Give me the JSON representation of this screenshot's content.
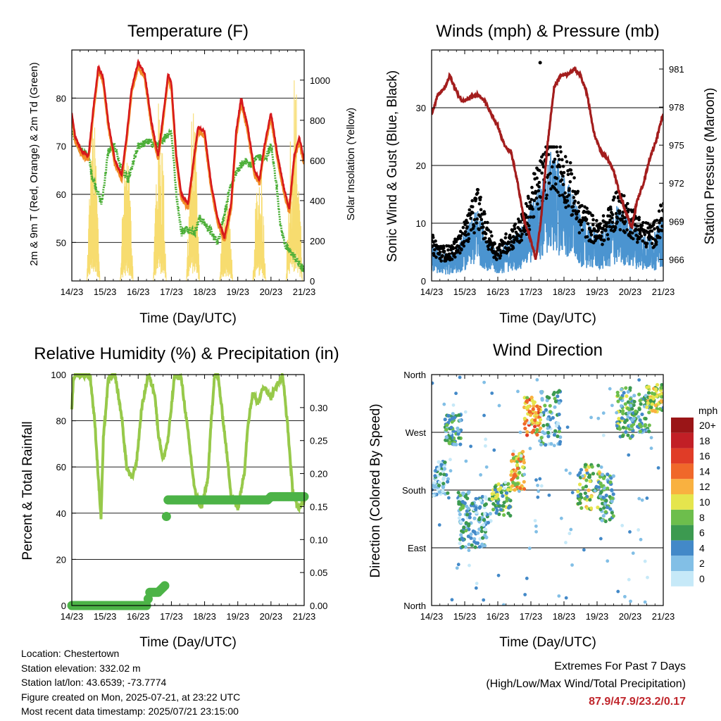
{
  "colors": {
    "temp_2m": "#d7191c",
    "temp_9m": "#f28c28",
    "dewpoint": "#4caf38",
    "solar": "#f7dc6f",
    "wind": "#4b94d0",
    "gust": "#000000",
    "pressure": "#a31d1d",
    "rh": "#97c94a",
    "rain": "#4cb347",
    "extremes": "#c0262c"
  },
  "x_ticks": [
    "14/23",
    "15/23",
    "16/23",
    "17/23",
    "18/23",
    "19/23",
    "20/23",
    "21/23"
  ],
  "panels": {
    "temperature": {
      "title": "Temperature (F)",
      "ylabel_left": "2m & 9m T (Red, Orange) & 2m Td (Green)",
      "ylabel_right": "Solar Insolation (Yellow)",
      "xlabel": "Time (Day/UTC)"
    },
    "winds": {
      "title": "Winds (mph) & Pressure (mb)",
      "ylabel_left": "Sonic Wind & Gust (Blue, Black)",
      "ylabel_right": "Station Pressure (Maroon)",
      "xlabel": "Time (Day/UTC)"
    },
    "humidity": {
      "title": "Relative Humidity (%) & Precipitation (in)",
      "ylabel_left": "Percent & Total Rainfall",
      "xlabel": "Time (Day/UTC)"
    },
    "direction": {
      "title": "Wind Direction",
      "ylabel_left": "Direction (Colored By Speed)",
      "xlabel": "Time (Day/UTC)",
      "legend_unit": "mph"
    }
  },
  "chart_data": [
    {
      "type": "line",
      "name": "temperature",
      "x_range": [
        0,
        7
      ],
      "ylim": [
        42,
        90
      ],
      "y2lim": [
        0,
        1150
      ],
      "yticks": [
        50,
        60,
        70,
        80
      ],
      "y2ticks": [
        0,
        200,
        400,
        600,
        800,
        1000
      ],
      "grid": true,
      "series": [
        {
          "key": "temp_2m",
          "x": [
            0,
            0.1,
            0.3,
            0.5,
            0.65,
            0.8,
            0.95,
            1.1,
            1.3,
            1.5,
            1.65,
            1.8,
            2.0,
            2.2,
            2.4,
            2.6,
            2.8,
            2.9,
            3.0,
            3.15,
            3.3,
            3.5,
            3.65,
            3.8,
            4.0,
            4.2,
            4.4,
            4.6,
            4.8,
            4.95,
            5.1,
            5.3,
            5.5,
            5.65,
            5.8,
            6.0,
            6.2,
            6.4,
            6.55,
            6.7,
            6.85,
            7.0
          ],
          "y": [
            77,
            72,
            69,
            68,
            78,
            86.5,
            84,
            75,
            67,
            64,
            72,
            82,
            87.5,
            85,
            75,
            68,
            79,
            85,
            83,
            68,
            60,
            58,
            66,
            74,
            73,
            62,
            55,
            51,
            58,
            73,
            80,
            74,
            65,
            63,
            70,
            77,
            68,
            61,
            57,
            68,
            72,
            67
          ]
        },
        {
          "key": "dewpoint",
          "x": [
            0,
            0.1,
            0.3,
            0.5,
            0.6,
            0.75,
            0.9,
            1.1,
            1.3,
            1.5,
            1.7,
            2.0,
            2.3,
            2.6,
            2.8,
            3.0,
            3.15,
            3.3,
            3.5,
            3.7,
            3.85,
            4.0,
            4.2,
            4.4,
            4.6,
            4.8,
            5.0,
            5.2,
            5.4,
            5.6,
            5.8,
            6.0,
            6.15,
            6.3,
            6.45,
            6.6,
            6.8,
            7.0
          ],
          "y": [
            73,
            71,
            69,
            68,
            64,
            61,
            58,
            69,
            70,
            65,
            63,
            70,
            71,
            70,
            72,
            73,
            60,
            52,
            53,
            52,
            55,
            54,
            52,
            50,
            56,
            62,
            65,
            67,
            66,
            68,
            67,
            70,
            63,
            53,
            49,
            48,
            46,
            44
          ]
        },
        {
          "key": "solar",
          "daylight": [
            [
              0.45,
              0.85
            ],
            [
              1.45,
              1.85
            ],
            [
              2.45,
              2.85
            ],
            [
              3.45,
              3.85
            ],
            [
              4.45,
              4.85
            ],
            [
              5.45,
              5.85
            ],
            [
              6.45,
              6.95
            ]
          ],
          "peaks": [
            820,
            700,
            950,
            880,
            520,
            620,
            1080
          ]
        }
      ]
    },
    {
      "type": "scatter",
      "name": "winds",
      "x_range": [
        0,
        7
      ],
      "ylim": [
        0,
        40
      ],
      "y2lim": [
        964.3,
        982.5
      ],
      "yticks": [
        0,
        10,
        20,
        30
      ],
      "y2ticks": [
        966,
        969,
        972,
        975,
        978,
        981
      ],
      "grid": true,
      "series": [
        {
          "key": "pressure",
          "x": [
            0,
            0.2,
            0.4,
            0.55,
            0.7,
            0.9,
            1.0,
            1.2,
            1.4,
            1.6,
            1.8,
            2.0,
            2.2,
            2.4,
            2.6,
            2.8,
            3.0,
            3.15,
            3.3,
            3.5,
            3.7,
            3.9,
            4.1,
            4.3,
            4.5,
            4.7,
            4.9,
            5.1,
            5.3,
            5.5,
            5.7,
            5.9,
            6.05,
            6.2,
            6.4,
            6.6,
            6.8,
            7.0
          ],
          "y": [
            977.5,
            979,
            979.5,
            980.5,
            979.5,
            978.5,
            978.5,
            978.8,
            979,
            978.5,
            977.5,
            976.5,
            975,
            974.5,
            972,
            969,
            967.5,
            966,
            969,
            975,
            979.5,
            980.5,
            980.5,
            981,
            980.5,
            979,
            976,
            974.5,
            974,
            973,
            971,
            969.5,
            968.5,
            970.5,
            972,
            974,
            975.5,
            977.5
          ]
        },
        {
          "key": "wind",
          "mean_speed": [
            4,
            3,
            3,
            4,
            6,
            8,
            5,
            3,
            4,
            5,
            6,
            9,
            11,
            14,
            12,
            10,
            7,
            6,
            5,
            6,
            8,
            7,
            6,
            5,
            5,
            7
          ]
        },
        {
          "key": "gust",
          "max": 23.2,
          "outlier": [
            3.28,
            37.8
          ]
        }
      ]
    },
    {
      "type": "line",
      "name": "humidity",
      "x_range": [
        0,
        7
      ],
      "ylim": [
        0,
        100
      ],
      "y2lim": [
        0,
        0.35
      ],
      "yticks": [
        0,
        20,
        40,
        60,
        80,
        100
      ],
      "y2ticks": [
        0.0,
        0.05,
        0.1,
        0.15,
        0.2,
        0.25,
        0.3
      ],
      "grid": true,
      "series": [
        {
          "key": "rh",
          "x": [
            0,
            0.05,
            0.15,
            0.35,
            0.55,
            0.7,
            0.8,
            0.88,
            0.95,
            1.1,
            1.3,
            1.5,
            1.65,
            1.8,
            1.95,
            2.1,
            2.3,
            2.5,
            2.6,
            2.75,
            2.9,
            3.1,
            3.3,
            3.5,
            3.7,
            3.9,
            4.1,
            4.2,
            4.3,
            4.4,
            4.6,
            4.8,
            5.0,
            5.2,
            5.3,
            5.45,
            5.6,
            5.8,
            6.0,
            6.2,
            6.35,
            6.5,
            6.65,
            6.8,
            7.0
          ],
          "y": [
            85,
            99,
            100,
            100,
            100,
            78,
            55,
            38,
            72,
            98,
            100,
            82,
            60,
            55,
            62,
            85,
            100,
            92,
            75,
            63,
            72,
            100,
            98,
            75,
            50,
            42,
            55,
            80,
            100,
            100,
            75,
            48,
            42,
            58,
            78,
            92,
            88,
            95,
            90,
            96,
            100,
            78,
            50,
            42,
            45
          ]
        },
        {
          "key": "rain",
          "x": [
            0,
            0.5,
            1.0,
            1.5,
            2.0,
            2.28,
            2.32,
            2.6,
            2.8,
            2.82,
            2.85,
            2.87,
            2.9,
            3.5,
            4.0,
            4.5,
            5.0,
            5.5,
            5.9,
            6.0,
            6.5,
            7.0
          ],
          "y": [
            0,
            0,
            0,
            0,
            0,
            0,
            0.02,
            0.02,
            0.03,
            0.095,
            0.135,
            0.16,
            0.16,
            0.16,
            0.16,
            0.16,
            0.16,
            0.16,
            0.16,
            0.165,
            0.165,
            0.165
          ]
        }
      ]
    },
    {
      "type": "scatter",
      "name": "direction",
      "x_range": [
        0,
        7
      ],
      "yticks": [
        "North",
        "East",
        "South",
        "West",
        "North"
      ],
      "ylim": [
        0,
        360
      ],
      "grid": true,
      "legend": {
        "labels": [
          "0",
          "2",
          "4",
          "6",
          "8",
          "10",
          "12",
          "14",
          "16",
          "18",
          "20+"
        ],
        "colors": [
          "#c6e9f8",
          "#82bfe6",
          "#4389c8",
          "#3c9a50",
          "#6dbe4c",
          "#e5e54d",
          "#f9b140",
          "#f0682a",
          "#e03c27",
          "#c21f26",
          "#9a1517"
        ]
      },
      "segments": [
        {
          "x": [
            0.0,
            0.5
          ],
          "dir": [
            170,
            225
          ],
          "speed": 3
        },
        {
          "x": [
            0.4,
            0.9
          ],
          "dir": [
            250,
            300
          ],
          "speed": 5
        },
        {
          "x": [
            0.8,
            1.2
          ],
          "dir": [
            90,
            180
          ],
          "speed": 4
        },
        {
          "x": [
            1.2,
            1.8
          ],
          "dir": [
            90,
            170
          ],
          "speed": 3
        },
        {
          "x": [
            1.8,
            2.4
          ],
          "dir": [
            140,
            190
          ],
          "speed": 7
        },
        {
          "x": [
            2.4,
            2.8
          ],
          "dir": [
            180,
            240
          ],
          "speed": 11
        },
        {
          "x": [
            2.8,
            3.3
          ],
          "dir": [
            265,
            325
          ],
          "speed": 12
        },
        {
          "x": [
            3.3,
            3.9
          ],
          "dir": [
            250,
            335
          ],
          "speed": 4
        },
        {
          "x": [
            4.4,
            5.1
          ],
          "dir": [
            150,
            220
          ],
          "speed": 8
        },
        {
          "x": [
            5.1,
            5.5
          ],
          "dir": [
            130,
            210
          ],
          "speed": 5
        },
        {
          "x": [
            5.6,
            6.1
          ],
          "dir": [
            260,
            340
          ],
          "speed": 6
        },
        {
          "x": [
            6.0,
            6.6
          ],
          "dir": [
            270,
            330
          ],
          "speed": 5
        },
        {
          "x": [
            6.5,
            7.0
          ],
          "dir": [
            300,
            345
          ],
          "speed": 9
        }
      ]
    }
  ],
  "footer": {
    "location": "Location: Chestertown",
    "elevation": "Station elevation: 332.02 m",
    "latlon": "Station lat/lon: 43.6539; -73.7774",
    "created": "Figure created on Mon, 2025-07-21, at 23:22 UTC",
    "recent": "Most recent data timestamp: 2025/07/21 23:15:00",
    "extremes_title": "Extremes For Past 7 Days",
    "extremes_sub": "(High/Low/Max Wind/Total Precipitation)",
    "extremes_values": "87.9/47.9/23.2/0.17"
  }
}
